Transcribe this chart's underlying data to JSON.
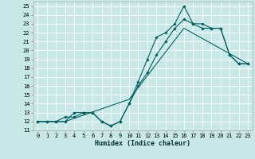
{
  "title": "",
  "xlabel": "Humidex (Indice chaleur)",
  "bg_color": "#c8e8e8",
  "grid_color": "#ffffff",
  "line_color": "#006060",
  "xlim": [
    -0.5,
    23.5
  ],
  "ylim": [
    11.0,
    25.5
  ],
  "xticks": [
    0,
    1,
    2,
    3,
    4,
    5,
    6,
    7,
    8,
    9,
    10,
    11,
    12,
    13,
    14,
    15,
    16,
    17,
    18,
    19,
    20,
    21,
    22,
    23
  ],
  "yticks": [
    11,
    12,
    13,
    14,
    15,
    16,
    17,
    18,
    19,
    20,
    21,
    22,
    23,
    24,
    25
  ],
  "line1_x": [
    0,
    1,
    2,
    3,
    4,
    5,
    6,
    7,
    8,
    9,
    10,
    11,
    12,
    13,
    14,
    15,
    16,
    17,
    18,
    19,
    20,
    21,
    22,
    23
  ],
  "line1_y": [
    12.0,
    12.0,
    12.0,
    12.0,
    13.0,
    13.0,
    13.0,
    12.0,
    11.5,
    12.0,
    14.0,
    16.5,
    19.0,
    21.5,
    22.0,
    23.0,
    25.0,
    23.0,
    23.0,
    22.5,
    22.5,
    19.5,
    18.5,
    18.5
  ],
  "line2_x": [
    0,
    1,
    2,
    3,
    4,
    5,
    6,
    7,
    8,
    9,
    10,
    11,
    12,
    13,
    14,
    15,
    16,
    17,
    18,
    19,
    20,
    21,
    22,
    23
  ],
  "line2_y": [
    12.0,
    12.0,
    12.0,
    12.5,
    12.5,
    13.0,
    13.0,
    12.0,
    11.5,
    12.0,
    14.0,
    16.0,
    17.5,
    19.5,
    21.0,
    22.5,
    23.5,
    23.0,
    22.5,
    22.5,
    22.5,
    19.5,
    18.5,
    18.5
  ],
  "line3_x": [
    0,
    3,
    10,
    16,
    23
  ],
  "line3_y": [
    12.0,
    12.0,
    14.5,
    22.5,
    18.5
  ],
  "tick_fontsize": 5,
  "xlabel_fontsize": 6,
  "lw": 0.8,
  "ms": 1.8
}
